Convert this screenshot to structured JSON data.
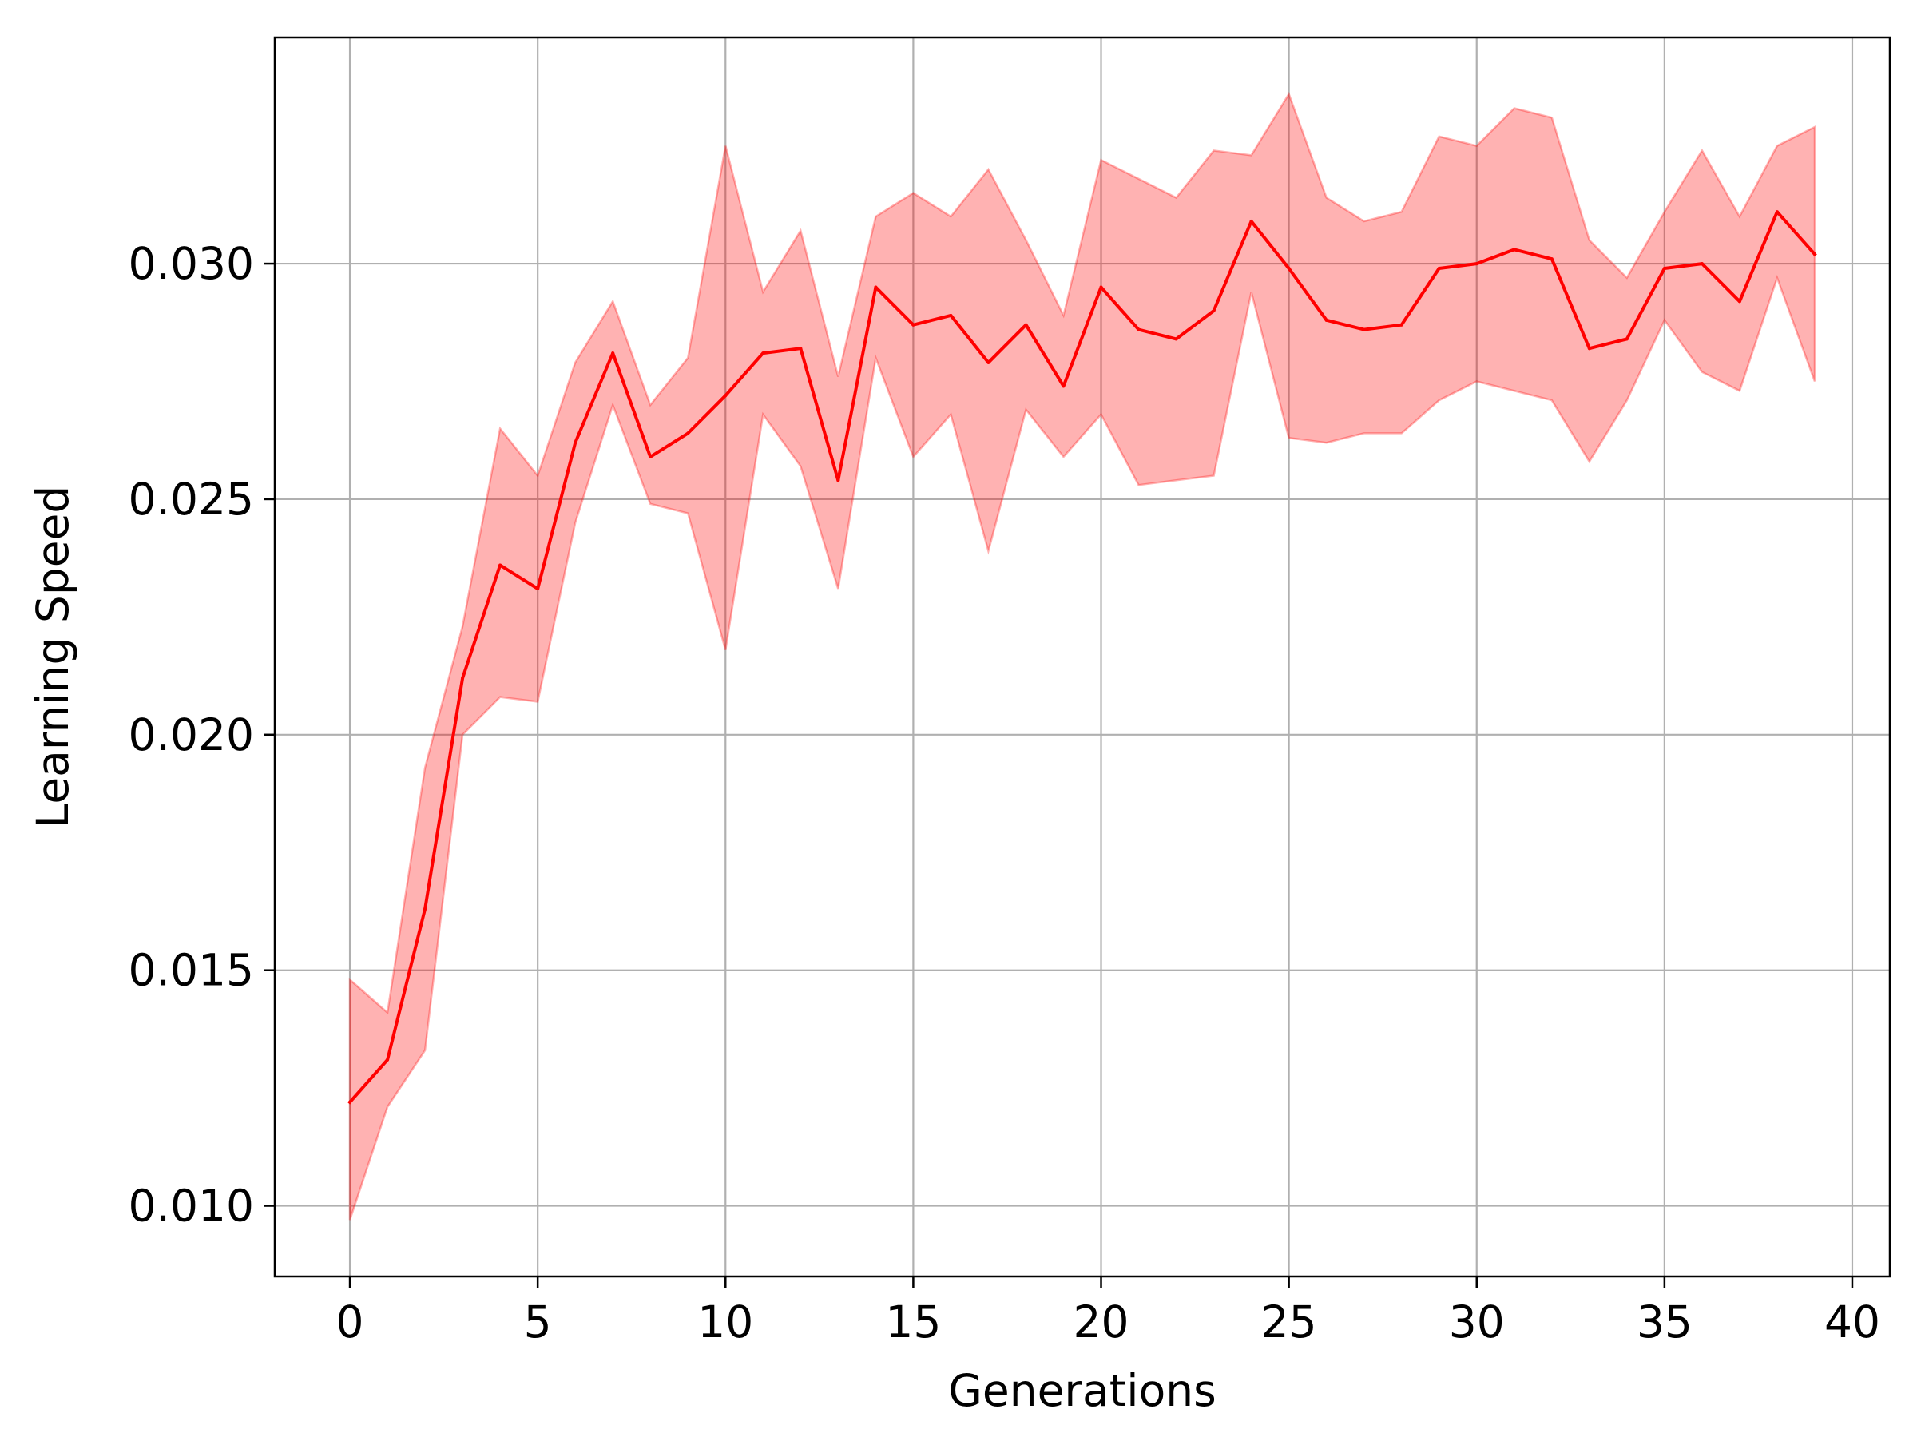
{
  "chart_data": {
    "type": "line",
    "xlabel": "Generations",
    "ylabel": "Learning Speed",
    "xlim": [
      -2,
      41
    ],
    "ylim": [
      0.0085,
      0.0348
    ],
    "xticks": [
      0,
      5,
      10,
      15,
      20,
      25,
      30,
      35,
      40
    ],
    "yticks": [
      0.01,
      0.015,
      0.02,
      0.025,
      0.03
    ],
    "xtick_labels": [
      "0",
      "5",
      "10",
      "15",
      "20",
      "25",
      "30",
      "35",
      "40"
    ],
    "ytick_labels": [
      "0.010",
      "0.015",
      "0.020",
      "0.025",
      "0.030"
    ],
    "grid": true,
    "legend": "none",
    "colors": {
      "line": "#ff0000",
      "band_fill": "#ff0000",
      "band_fill_opacity": 0.3,
      "grid": "#b0b0b0",
      "axes": "#000000"
    },
    "series": [
      {
        "x": [
          0,
          1,
          2,
          3,
          4,
          5,
          6,
          7,
          8,
          9,
          10,
          11,
          12,
          13,
          14,
          15,
          16,
          17,
          18,
          19,
          20,
          21,
          22,
          23,
          24,
          25,
          26,
          27,
          28,
          29,
          30,
          31,
          32,
          33,
          34,
          35,
          36,
          37,
          38,
          39
        ],
        "mean": [
          0.0122,
          0.0131,
          0.0163,
          0.0212,
          0.0236,
          0.0231,
          0.0262,
          0.0281,
          0.0259,
          0.0264,
          0.0272,
          0.0281,
          0.0282,
          0.0254,
          0.0295,
          0.0287,
          0.0289,
          0.0279,
          0.0287,
          0.0274,
          0.0295,
          0.0286,
          0.0284,
          0.029,
          0.0309,
          0.0299,
          0.0288,
          0.0286,
          0.0287,
          0.0299,
          0.03,
          0.0303,
          0.0301,
          0.0282,
          0.0284,
          0.0299,
          0.03,
          0.0292,
          0.0311,
          0.0302
        ],
        "upper": [
          0.0148,
          0.0141,
          0.0193,
          0.0223,
          0.0265,
          0.0255,
          0.0279,
          0.0292,
          0.027,
          0.028,
          0.0325,
          0.0294,
          0.0307,
          0.0276,
          0.031,
          0.0315,
          0.031,
          0.032,
          0.0305,
          0.0289,
          0.0322,
          0.0318,
          0.0314,
          0.0324,
          0.0323,
          0.0336,
          0.0314,
          0.0309,
          0.0311,
          0.0327,
          0.0325,
          0.0333,
          0.0331,
          0.0305,
          0.0297,
          0.0311,
          0.0324,
          0.031,
          0.0325,
          0.0329
        ],
        "lower": [
          0.0097,
          0.0121,
          0.0133,
          0.02,
          0.0208,
          0.0207,
          0.0245,
          0.027,
          0.0249,
          0.0247,
          0.0218,
          0.0268,
          0.0257,
          0.0231,
          0.028,
          0.0259,
          0.0268,
          0.0239,
          0.0269,
          0.0259,
          0.0268,
          0.0253,
          0.0254,
          0.0255,
          0.0294,
          0.0263,
          0.0262,
          0.0264,
          0.0264,
          0.0271,
          0.0275,
          0.0273,
          0.0271,
          0.0258,
          0.0271,
          0.0288,
          0.0277,
          0.0273,
          0.0297,
          0.0275
        ]
      }
    ]
  }
}
